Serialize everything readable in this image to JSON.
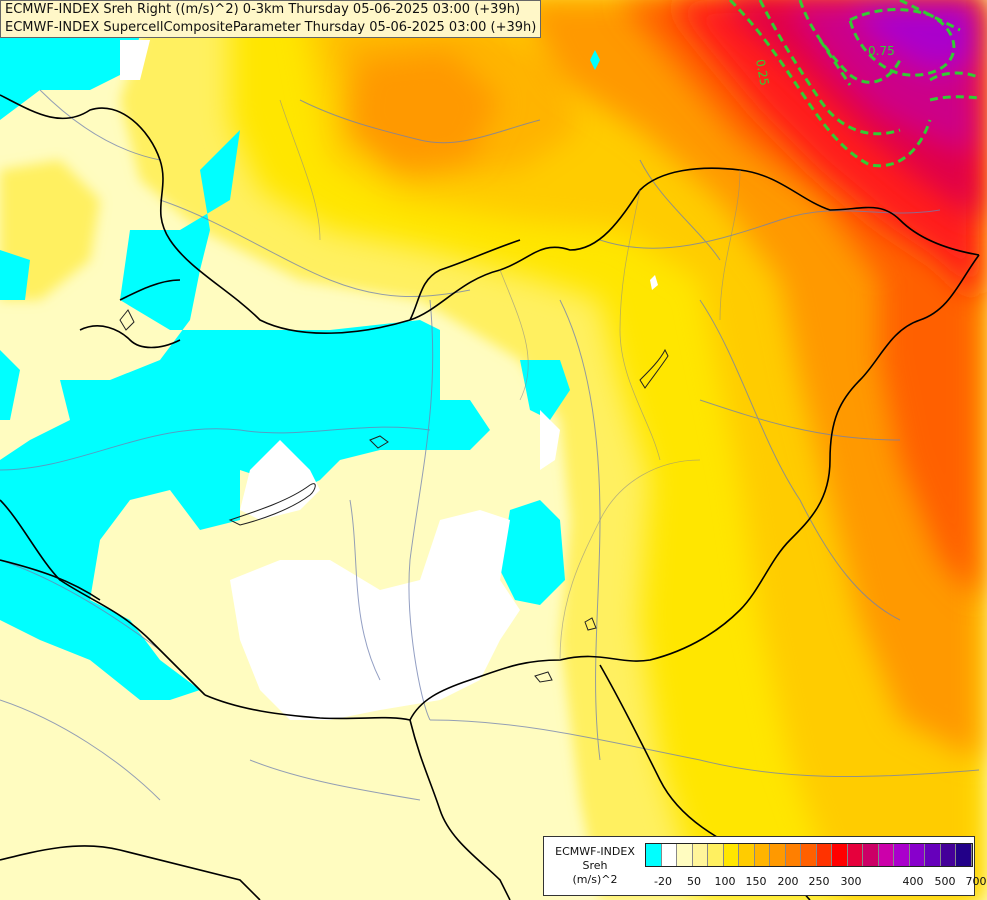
{
  "header": {
    "line1": "ECMWF-INDEX Sreh Right ((m/s)^2) 0-3km Thursday 05-06-2025 03:00 (+39h)",
    "line2": "ECMWF-INDEX SupercellCompositeParameter Thursday 05-06-2025 03:00 (+39h)"
  },
  "map": {
    "contour_labels": [
      "0.25",
      "0.75"
    ],
    "contour_color": "#33cc33"
  },
  "legend": {
    "title_line1": "ECMWF-INDEX",
    "title_line2": "Sreh",
    "title_line3": "(m/s)^2",
    "colors": [
      "#00ffff",
      "#ffffff",
      "#fffcc0",
      "#fff59a",
      "#fff060",
      "#ffe600",
      "#ffcc00",
      "#ffb400",
      "#ff9900",
      "#ff7f00",
      "#ff6000",
      "#ff3300",
      "#ff0000",
      "#e6003c",
      "#cc0066",
      "#cc00aa",
      "#aa00cc",
      "#8800cc",
      "#6600bb",
      "#440099",
      "#220088"
    ],
    "ticks": [
      "-20",
      "50",
      "100",
      "150",
      "200",
      "250",
      "300",
      "400",
      "500",
      "700"
    ]
  }
}
